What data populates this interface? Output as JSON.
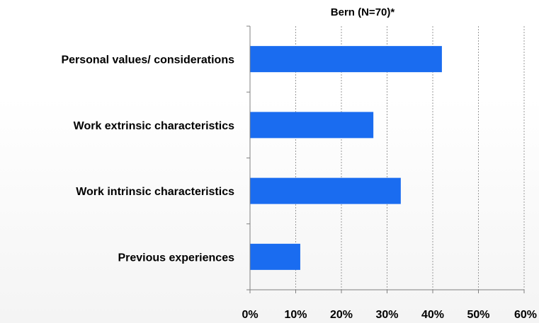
{
  "chart_data": {
    "type": "bar",
    "orientation": "horizontal",
    "title": "Bern (N=70)*",
    "categories": [
      "Personal values/ considerations",
      "Work extrinsic characteristics",
      "Work intrinsic characteristics",
      "Previous experiences"
    ],
    "values": [
      42,
      27,
      33,
      11
    ],
    "xlabel": "",
    "ylabel": "",
    "xlim": [
      0,
      60
    ],
    "x_ticks": [
      "0%",
      "10%",
      "20%",
      "30%",
      "40%",
      "50%",
      "60%"
    ],
    "grid": "vertical dotted",
    "legend": "none",
    "bar_color": "#1a6cf0"
  }
}
